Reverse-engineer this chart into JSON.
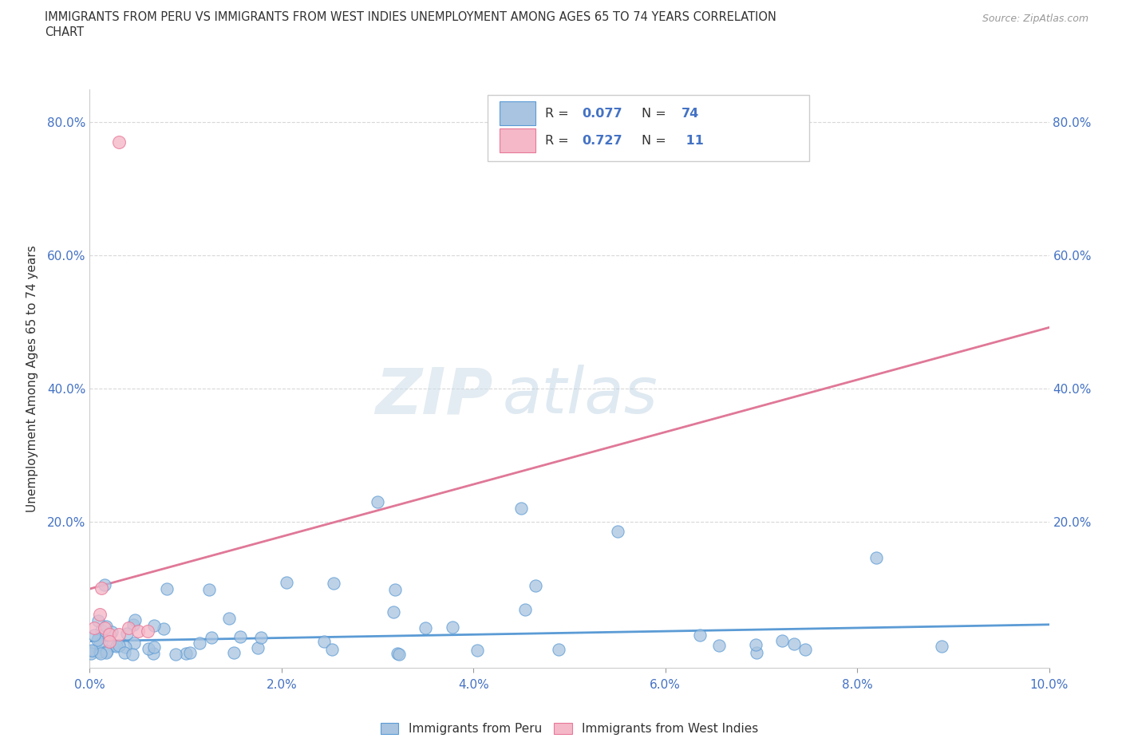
{
  "title_line1": "IMMIGRANTS FROM PERU VS IMMIGRANTS FROM WEST INDIES UNEMPLOYMENT AMONG AGES 65 TO 74 YEARS CORRELATION",
  "title_line2": "CHART",
  "source": "Source: ZipAtlas.com",
  "ylabel": "Unemployment Among Ages 65 to 74 years",
  "xlim": [
    0.0,
    0.1
  ],
  "ylim": [
    -0.02,
    0.85
  ],
  "xtick_labels": [
    "0.0%",
    "2.0%",
    "4.0%",
    "6.0%",
    "8.0%",
    "10.0%"
  ],
  "xtick_values": [
    0.0,
    0.02,
    0.04,
    0.06,
    0.08,
    0.1
  ],
  "ytick_labels": [
    "20.0%",
    "40.0%",
    "60.0%",
    "80.0%"
  ],
  "ytick_values": [
    0.2,
    0.4,
    0.6,
    0.8
  ],
  "blue_face_color": "#a8c4e0",
  "blue_edge_color": "#5b9bd5",
  "pink_face_color": "#f4b8c8",
  "pink_edge_color": "#e87898",
  "blue_trend_color": "#5b9bd5",
  "pink_trend_color": "#e07898",
  "pink_dashed_color": "#f0b0c0",
  "legend_label1": "Immigrants from Peru",
  "legend_label2": "Immigrants from West Indies",
  "watermark_zip": "ZIP",
  "watermark_atlas": "atlas",
  "background_color": "#ffffff",
  "grid_color": "#d8d8d8",
  "tick_color": "#4472c4",
  "title_color": "#333333",
  "ylabel_color": "#333333"
}
